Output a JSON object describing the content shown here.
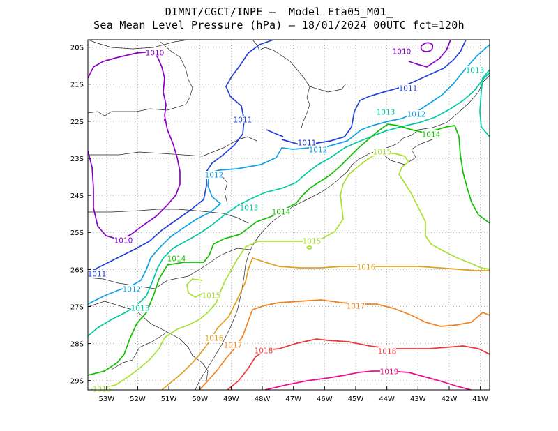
{
  "title": {
    "line1": "DIMNT/CGCT/INPE –  Model Eta05_M01_",
    "line2": "Sea Mean Level Pressure (hPa) – 18/01/2024 00UTC fct=120h"
  },
  "axes": {
    "lon_labels": [
      "53W",
      "52W",
      "51W",
      "50W",
      "49W",
      "48W",
      "47W",
      "46W",
      "45W",
      "44W",
      "43W",
      "42W",
      "41W"
    ],
    "lat_labels": [
      "20S",
      "21S",
      "22S",
      "23S",
      "24S",
      "25S",
      "26S",
      "27S",
      "28S",
      "29S"
    ]
  },
  "contours": [
    {
      "level": "1010",
      "color": "#8a00c8"
    },
    {
      "level": "1011",
      "color": "#2040d8"
    },
    {
      "level": "1012",
      "color": "#10a0e8"
    },
    {
      "level": "1013",
      "color": "#00c8a0"
    },
    {
      "level": "1014",
      "color": "#10c000"
    },
    {
      "level": "1015",
      "color": "#a8e030"
    },
    {
      "level": "1016",
      "color": "#e0a020"
    },
    {
      "level": "1017",
      "color": "#f08020"
    },
    {
      "level": "1018",
      "color": "#f03838"
    },
    {
      "level": "1019",
      "color": "#e8108a"
    }
  ],
  "labels": {
    "l1010a": "1010",
    "l1010b": "1010",
    "l1010c": "1010",
    "l1011a": "1011",
    "l1011b": "1011",
    "l1011c": "1011",
    "l1011d": "1011",
    "l1012a": "1012",
    "l1012b": "1012",
    "l1012c": "1012",
    "l1012d": "1012",
    "l1013a": "1013",
    "l1013b": "1013",
    "l1013c": "1013",
    "l1013d": "1013",
    "l1014a": "1014",
    "l1014b": "1014",
    "l1014c": "1014",
    "l1015a": "1015",
    "l1015b": "1015",
    "l1015c": "1015",
    "l1015d": "1015",
    "l1016a": "1016",
    "l1016b": "1016",
    "l1017a": "1017",
    "l1017b": "1017",
    "l1018a": "1018",
    "l1018b": "1018",
    "l1019a": "1019"
  }
}
